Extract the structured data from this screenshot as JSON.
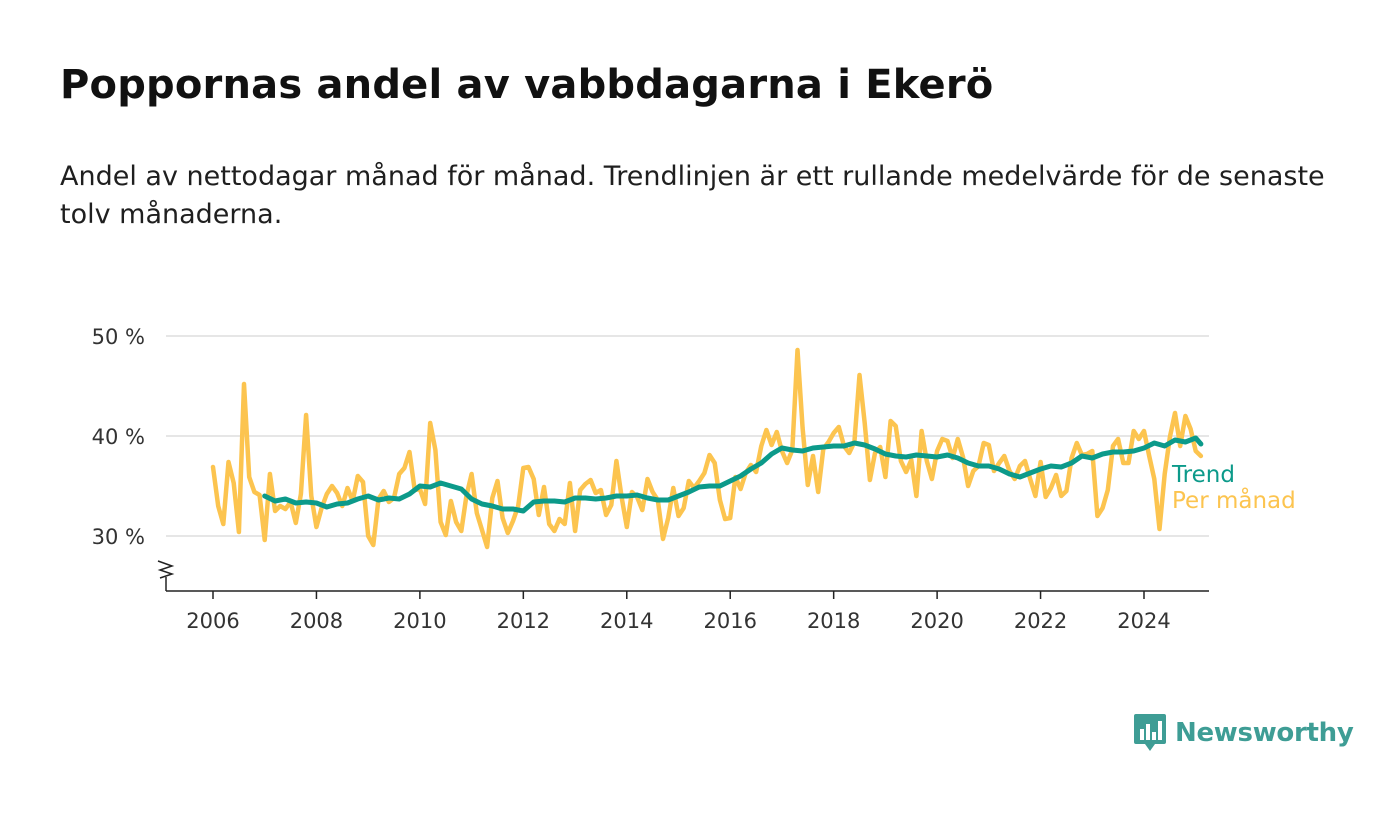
{
  "header": {
    "title": "Poppornas andel av vabbdagarna i Ekerö",
    "subtitle": "Andel av nettodagar månad för månad. Trendlinjen är ett rullande medelvärde för de senaste tolv månaderna."
  },
  "brand": {
    "name": "Newsworthy",
    "icon": "newsworthy-logo-icon"
  },
  "colors": {
    "trend": "#0c9a8a",
    "monthly": "#fcc44f",
    "grid": "#dddddd",
    "axis": "#222222"
  },
  "chart_data": {
    "type": "line",
    "title": "Poppornas andel av vabbdagarna i Ekerö",
    "ylim": [
      25,
      50
    ],
    "xlim": [
      2005.1,
      2025.3
    ],
    "y_ticks": [
      {
        "value": 30,
        "label": "30 %"
      },
      {
        "value": 40,
        "label": "40 %"
      },
      {
        "value": 50,
        "label": "50 %"
      }
    ],
    "x_ticks": [
      {
        "value": 2006,
        "label": "2006"
      },
      {
        "value": 2008,
        "label": "2008"
      },
      {
        "value": 2010,
        "label": "2010"
      },
      {
        "value": 2012,
        "label": "2012"
      },
      {
        "value": 2014,
        "label": "2014"
      },
      {
        "value": 2016,
        "label": "2016"
      },
      {
        "value": 2018,
        "label": "2018"
      },
      {
        "value": 2020,
        "label": "2020"
      },
      {
        "value": 2022,
        "label": "2022"
      },
      {
        "value": 2024,
        "label": "2024"
      }
    ],
    "grid": true,
    "axis_break": true,
    "legend": "labels at line ends, right",
    "series": [
      {
        "name": "Per månad",
        "color": "#fcc44f",
        "points": [
          [
            2006.0,
            36.9
          ],
          [
            2006.1,
            33.0
          ],
          [
            2006.2,
            31.2
          ],
          [
            2006.3,
            37.4
          ],
          [
            2006.4,
            35.3
          ],
          [
            2006.5,
            30.4
          ],
          [
            2006.6,
            45.2
          ],
          [
            2006.7,
            35.9
          ],
          [
            2006.8,
            34.4
          ],
          [
            2006.9,
            34.1
          ],
          [
            2007.0,
            29.6
          ],
          [
            2007.1,
            36.2
          ],
          [
            2007.2,
            32.5
          ],
          [
            2007.3,
            33.0
          ],
          [
            2007.4,
            32.7
          ],
          [
            2007.5,
            33.4
          ],
          [
            2007.6,
            31.3
          ],
          [
            2007.7,
            34.2
          ],
          [
            2007.8,
            42.1
          ],
          [
            2007.9,
            34.0
          ],
          [
            2008.0,
            30.9
          ],
          [
            2008.1,
            32.8
          ],
          [
            2008.2,
            34.2
          ],
          [
            2008.3,
            35.0
          ],
          [
            2008.4,
            34.3
          ],
          [
            2008.5,
            33.0
          ],
          [
            2008.6,
            34.8
          ],
          [
            2008.7,
            33.5
          ],
          [
            2008.8,
            36.0
          ],
          [
            2008.9,
            35.4
          ],
          [
            2009.0,
            30.0
          ],
          [
            2009.1,
            29.1
          ],
          [
            2009.2,
            33.7
          ],
          [
            2009.3,
            34.5
          ],
          [
            2009.4,
            33.4
          ],
          [
            2009.5,
            33.8
          ],
          [
            2009.6,
            36.2
          ],
          [
            2009.7,
            36.8
          ],
          [
            2009.8,
            38.4
          ],
          [
            2009.9,
            34.6
          ],
          [
            2010.0,
            34.7
          ],
          [
            2010.1,
            33.2
          ],
          [
            2010.2,
            41.3
          ],
          [
            2010.3,
            38.6
          ],
          [
            2010.4,
            31.4
          ],
          [
            2010.5,
            30.1
          ],
          [
            2010.6,
            33.5
          ],
          [
            2010.7,
            31.4
          ],
          [
            2010.8,
            30.5
          ],
          [
            2010.9,
            34.0
          ],
          [
            2011.0,
            36.2
          ],
          [
            2011.1,
            32.3
          ],
          [
            2011.2,
            30.6
          ],
          [
            2011.3,
            28.9
          ],
          [
            2011.4,
            33.8
          ],
          [
            2011.5,
            35.5
          ],
          [
            2011.6,
            31.8
          ],
          [
            2011.7,
            30.3
          ],
          [
            2011.8,
            31.5
          ],
          [
            2011.9,
            33.0
          ],
          [
            2012.0,
            36.8
          ],
          [
            2012.1,
            36.9
          ],
          [
            2012.2,
            35.7
          ],
          [
            2012.3,
            32.1
          ],
          [
            2012.4,
            34.9
          ],
          [
            2012.5,
            31.2
          ],
          [
            2012.6,
            30.5
          ],
          [
            2012.7,
            31.7
          ],
          [
            2012.8,
            31.2
          ],
          [
            2012.9,
            35.3
          ],
          [
            2013.0,
            30.5
          ],
          [
            2013.1,
            34.6
          ],
          [
            2013.2,
            35.2
          ],
          [
            2013.3,
            35.6
          ],
          [
            2013.4,
            34.3
          ],
          [
            2013.5,
            34.6
          ],
          [
            2013.6,
            32.1
          ],
          [
            2013.7,
            33.1
          ],
          [
            2013.8,
            37.5
          ],
          [
            2013.9,
            33.9
          ],
          [
            2014.0,
            30.9
          ],
          [
            2014.1,
            34.4
          ],
          [
            2014.2,
            33.9
          ],
          [
            2014.3,
            32.6
          ],
          [
            2014.4,
            35.7
          ],
          [
            2014.5,
            34.4
          ],
          [
            2014.6,
            33.6
          ],
          [
            2014.7,
            29.7
          ],
          [
            2014.8,
            31.8
          ],
          [
            2014.9,
            34.8
          ],
          [
            2015.0,
            32.0
          ],
          [
            2015.1,
            32.8
          ],
          [
            2015.2,
            35.5
          ],
          [
            2015.3,
            34.8
          ],
          [
            2015.4,
            35.5
          ],
          [
            2015.5,
            36.3
          ],
          [
            2015.6,
            38.1
          ],
          [
            2015.7,
            37.3
          ],
          [
            2015.8,
            33.6
          ],
          [
            2015.9,
            31.7
          ],
          [
            2016.0,
            31.8
          ],
          [
            2016.1,
            35.9
          ],
          [
            2016.2,
            34.7
          ],
          [
            2016.3,
            36.3
          ],
          [
            2016.4,
            37.1
          ],
          [
            2016.5,
            36.4
          ],
          [
            2016.6,
            39.0
          ],
          [
            2016.7,
            40.6
          ],
          [
            2016.8,
            39.1
          ],
          [
            2016.9,
            40.4
          ],
          [
            2017.0,
            38.5
          ],
          [
            2017.1,
            37.3
          ],
          [
            2017.2,
            38.6
          ],
          [
            2017.3,
            48.6
          ],
          [
            2017.4,
            40.8
          ],
          [
            2017.5,
            35.1
          ],
          [
            2017.6,
            38.0
          ],
          [
            2017.7,
            34.4
          ],
          [
            2017.8,
            38.7
          ],
          [
            2017.9,
            39.4
          ],
          [
            2018.0,
            40.3
          ],
          [
            2018.1,
            40.9
          ],
          [
            2018.2,
            39.0
          ],
          [
            2018.3,
            38.3
          ],
          [
            2018.4,
            39.4
          ],
          [
            2018.5,
            46.1
          ],
          [
            2018.6,
            41.3
          ],
          [
            2018.7,
            35.6
          ],
          [
            2018.8,
            38.3
          ],
          [
            2018.9,
            38.9
          ],
          [
            2019.0,
            35.9
          ],
          [
            2019.1,
            41.5
          ],
          [
            2019.2,
            41.0
          ],
          [
            2019.3,
            37.5
          ],
          [
            2019.4,
            36.4
          ],
          [
            2019.5,
            37.6
          ],
          [
            2019.6,
            34.0
          ],
          [
            2019.7,
            40.5
          ],
          [
            2019.8,
            37.5
          ],
          [
            2019.9,
            35.7
          ],
          [
            2020.0,
            38.5
          ],
          [
            2020.1,
            39.7
          ],
          [
            2020.2,
            39.5
          ],
          [
            2020.3,
            37.8
          ],
          [
            2020.4,
            39.7
          ],
          [
            2020.5,
            37.9
          ],
          [
            2020.6,
            35.0
          ],
          [
            2020.7,
            36.5
          ],
          [
            2020.8,
            37.0
          ],
          [
            2020.9,
            39.3
          ],
          [
            2021.0,
            39.1
          ],
          [
            2021.1,
            36.5
          ],
          [
            2021.2,
            37.3
          ],
          [
            2021.3,
            38.0
          ],
          [
            2021.4,
            36.5
          ],
          [
            2021.5,
            35.7
          ],
          [
            2021.6,
            37.0
          ],
          [
            2021.7,
            37.5
          ],
          [
            2021.8,
            35.7
          ],
          [
            2021.9,
            34.0
          ],
          [
            2022.0,
            37.4
          ],
          [
            2022.1,
            33.9
          ],
          [
            2022.2,
            34.8
          ],
          [
            2022.3,
            36.1
          ],
          [
            2022.4,
            34.0
          ],
          [
            2022.5,
            34.5
          ],
          [
            2022.6,
            37.8
          ],
          [
            2022.7,
            39.3
          ],
          [
            2022.8,
            38.1
          ],
          [
            2022.9,
            38.2
          ],
          [
            2023.0,
            38.5
          ],
          [
            2023.1,
            32.0
          ],
          [
            2023.2,
            32.8
          ],
          [
            2023.3,
            34.6
          ],
          [
            2023.4,
            39.0
          ],
          [
            2023.5,
            39.7
          ],
          [
            2023.6,
            37.3
          ],
          [
            2023.7,
            37.3
          ],
          [
            2023.8,
            40.5
          ],
          [
            2023.9,
            39.7
          ],
          [
            2024.0,
            40.5
          ],
          [
            2024.1,
            38.0
          ],
          [
            2024.2,
            35.7
          ],
          [
            2024.3,
            30.7
          ],
          [
            2024.4,
            36.2
          ],
          [
            2024.5,
            39.9
          ],
          [
            2024.6,
            42.3
          ],
          [
            2024.7,
            39.0
          ],
          [
            2024.8,
            42.0
          ],
          [
            2024.9,
            40.7
          ],
          [
            2025.0,
            38.5
          ],
          [
            2025.1,
            38.0
          ]
        ]
      },
      {
        "name": "Trend",
        "color": "#0c9a8a",
        "points": [
          [
            2007.0,
            34.0
          ],
          [
            2007.2,
            33.5
          ],
          [
            2007.4,
            33.7
          ],
          [
            2007.6,
            33.3
          ],
          [
            2007.8,
            33.4
          ],
          [
            2008.0,
            33.3
          ],
          [
            2008.2,
            32.9
          ],
          [
            2008.4,
            33.2
          ],
          [
            2008.6,
            33.3
          ],
          [
            2008.8,
            33.7
          ],
          [
            2009.0,
            34.0
          ],
          [
            2009.2,
            33.6
          ],
          [
            2009.4,
            33.8
          ],
          [
            2009.6,
            33.7
          ],
          [
            2009.8,
            34.2
          ],
          [
            2010.0,
            35.0
          ],
          [
            2010.2,
            34.9
          ],
          [
            2010.4,
            35.3
          ],
          [
            2010.6,
            35.0
          ],
          [
            2010.8,
            34.7
          ],
          [
            2011.0,
            33.7
          ],
          [
            2011.2,
            33.2
          ],
          [
            2011.4,
            33.0
          ],
          [
            2011.6,
            32.7
          ],
          [
            2011.8,
            32.7
          ],
          [
            2012.0,
            32.5
          ],
          [
            2012.2,
            33.4
          ],
          [
            2012.4,
            33.5
          ],
          [
            2012.6,
            33.5
          ],
          [
            2012.8,
            33.4
          ],
          [
            2013.0,
            33.8
          ],
          [
            2013.2,
            33.8
          ],
          [
            2013.4,
            33.7
          ],
          [
            2013.6,
            33.8
          ],
          [
            2013.8,
            34.0
          ],
          [
            2014.0,
            34.0
          ],
          [
            2014.2,
            34.1
          ],
          [
            2014.4,
            33.8
          ],
          [
            2014.6,
            33.6
          ],
          [
            2014.8,
            33.6
          ],
          [
            2015.0,
            34.0
          ],
          [
            2015.2,
            34.4
          ],
          [
            2015.4,
            34.9
          ],
          [
            2015.6,
            35.0
          ],
          [
            2015.8,
            35.0
          ],
          [
            2016.0,
            35.5
          ],
          [
            2016.2,
            36.0
          ],
          [
            2016.4,
            36.7
          ],
          [
            2016.6,
            37.3
          ],
          [
            2016.8,
            38.2
          ],
          [
            2017.0,
            38.8
          ],
          [
            2017.2,
            38.6
          ],
          [
            2017.4,
            38.5
          ],
          [
            2017.6,
            38.8
          ],
          [
            2017.8,
            38.9
          ],
          [
            2018.0,
            39.0
          ],
          [
            2018.2,
            39.0
          ],
          [
            2018.4,
            39.3
          ],
          [
            2018.6,
            39.1
          ],
          [
            2018.8,
            38.7
          ],
          [
            2019.0,
            38.2
          ],
          [
            2019.2,
            38.0
          ],
          [
            2019.4,
            37.9
          ],
          [
            2019.6,
            38.1
          ],
          [
            2019.8,
            38.0
          ],
          [
            2020.0,
            37.9
          ],
          [
            2020.2,
            38.1
          ],
          [
            2020.4,
            37.8
          ],
          [
            2020.6,
            37.3
          ],
          [
            2020.8,
            37.0
          ],
          [
            2021.0,
            37.0
          ],
          [
            2021.2,
            36.7
          ],
          [
            2021.4,
            36.2
          ],
          [
            2021.6,
            35.9
          ],
          [
            2021.8,
            36.3
          ],
          [
            2022.0,
            36.7
          ],
          [
            2022.2,
            37.0
          ],
          [
            2022.4,
            36.9
          ],
          [
            2022.6,
            37.3
          ],
          [
            2022.8,
            38.0
          ],
          [
            2023.0,
            37.8
          ],
          [
            2023.2,
            38.2
          ],
          [
            2023.4,
            38.4
          ],
          [
            2023.6,
            38.4
          ],
          [
            2023.8,
            38.5
          ],
          [
            2024.0,
            38.8
          ],
          [
            2024.2,
            39.3
          ],
          [
            2024.4,
            39.0
          ],
          [
            2024.6,
            39.6
          ],
          [
            2024.8,
            39.4
          ],
          [
            2025.0,
            39.8
          ],
          [
            2025.1,
            39.2
          ]
        ]
      }
    ]
  }
}
